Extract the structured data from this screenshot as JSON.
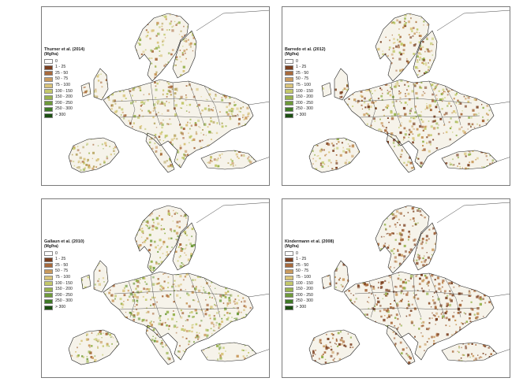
{
  "legend_classes": [
    {
      "label": "0",
      "color": "#ffffff"
    },
    {
      "label": "1 - 25",
      "color": "#7b3f1f"
    },
    {
      "label": "25 - 50",
      "color": "#a86a3c"
    },
    {
      "label": "50 - 75",
      "color": "#c99a5e"
    },
    {
      "label": "75 - 100",
      "color": "#d9c47a"
    },
    {
      "label": "100 - 150",
      "color": "#c3c86a"
    },
    {
      "label": "150 - 200",
      "color": "#98b24e"
    },
    {
      "label": "200 - 250",
      "color": "#6e9a3a"
    },
    {
      "label": "250 - 300",
      "color": "#3f7a26"
    },
    {
      "label": "> 300",
      "color": "#1c4f12"
    }
  ],
  "panels": [
    {
      "title": "Thurner et al. (2014)",
      "unit": "(Mg/ha)",
      "palette": [
        "#c3c86a",
        "#d9c47a",
        "#98b24e",
        "#b6a25c",
        "#a86a3c",
        "#c99a5e"
      ]
    },
    {
      "title": "Barredo et al. (2012)",
      "unit": "(Mg/ha)",
      "palette": [
        "#a86a3c",
        "#c99a5e",
        "#98b24e",
        "#c3c86a",
        "#7b3f1f",
        "#d9c47a"
      ]
    },
    {
      "title": "Gallaun et al. (2010)",
      "unit": "(Mg/ha)",
      "palette": [
        "#c3c86a",
        "#98b24e",
        "#d9c47a",
        "#a86a3c",
        "#6e9a3a",
        "#c99a5e"
      ]
    },
    {
      "title": "Kindermann et al. (2008)",
      "unit": "(Mg/ha)",
      "palette": [
        "#7b3f1f",
        "#a86a3c",
        "#c99a5e",
        "#98b24e",
        "#7b3f1f",
        "#a86a3c"
      ]
    }
  ]
}
